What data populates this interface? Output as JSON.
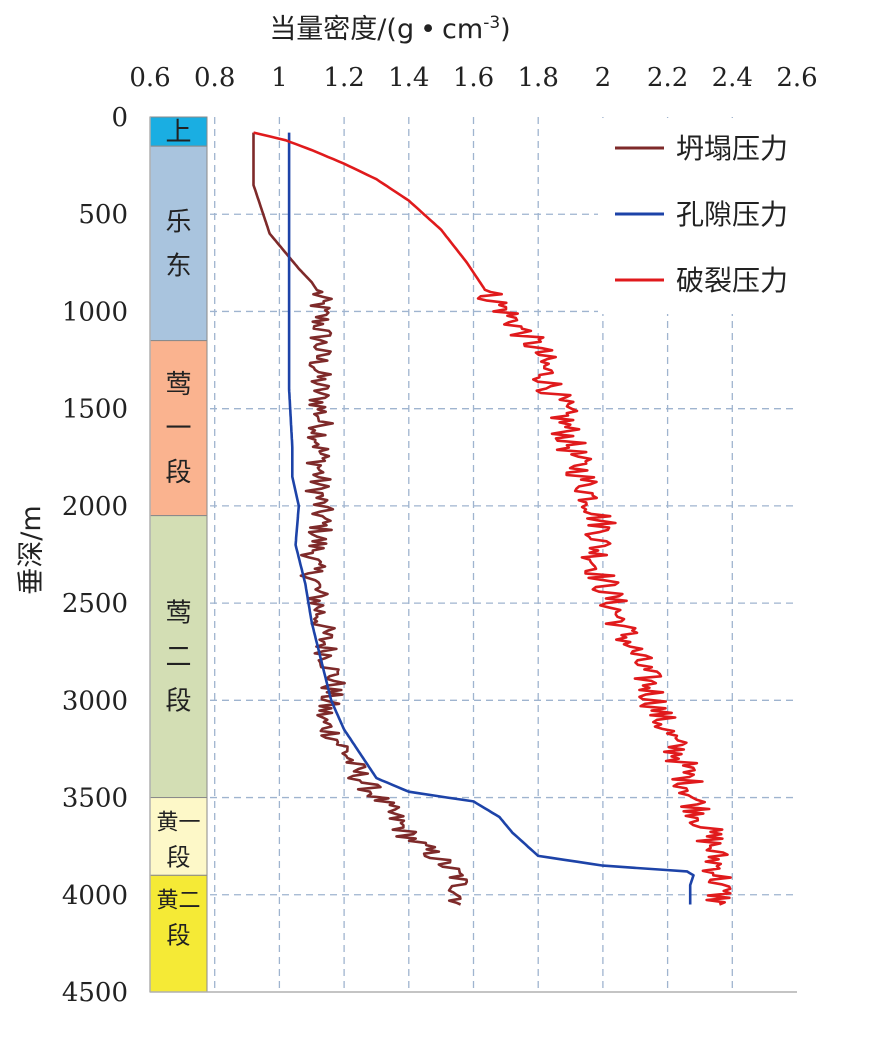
{
  "chart_data": {
    "type": "line",
    "title": "当量密度/(g·cm-3)",
    "title_main": "当量密度/(g",
    "title_dot": "•",
    "title_unit": "cm",
    "title_exp": "-3",
    "title_close": ")",
    "xlabel": "当量密度/(g·cm-3)",
    "ylabel": "垂深/m",
    "x_axis_position": "top",
    "xlim": [
      0.6,
      2.6
    ],
    "ylim": [
      0,
      4500
    ],
    "y_inverted": true,
    "x_ticks": [
      "0.6",
      "0.8",
      "1",
      "1.2",
      "1.4",
      "1.6",
      "1.8",
      "2",
      "2.2",
      "2.4",
      "2.6"
    ],
    "y_ticks": [
      "0",
      "500",
      "1000",
      "1500",
      "2000",
      "2500",
      "3000",
      "3500",
      "4000",
      "4500"
    ],
    "grid": true,
    "legend_position": "top-right",
    "formations": [
      {
        "label": "上",
        "top": 0,
        "bottom": 150,
        "color": "#1aaee2"
      },
      {
        "label": "乐东",
        "top": 150,
        "bottom": 1150,
        "color": "#a9c4de"
      },
      {
        "label": "莺一段",
        "top": 1150,
        "bottom": 2050,
        "color": "#fab38f"
      },
      {
        "label": "莺二段",
        "top": 2050,
        "bottom": 3500,
        "color": "#d3deb4"
      },
      {
        "label": "黄一段",
        "top": 3500,
        "bottom": 3900,
        "color": "#fdf8c8"
      },
      {
        "label": "黄二段",
        "top": 3900,
        "bottom": 4500,
        "color": "#f5ea36"
      }
    ],
    "series": [
      {
        "name": "坍塌压力",
        "color": "#7e2a2a",
        "noise": 0.04,
        "noise_from": 900,
        "points": [
          [
            0.92,
            80
          ],
          [
            0.92,
            350
          ],
          [
            0.94,
            450
          ],
          [
            0.97,
            600
          ],
          [
            1.02,
            700
          ],
          [
            1.06,
            780
          ],
          [
            1.1,
            850
          ],
          [
            1.12,
            900
          ],
          [
            1.13,
            1100
          ],
          [
            1.12,
            1300
          ],
          [
            1.13,
            1600
          ],
          [
            1.12,
            1900
          ],
          [
            1.13,
            2100
          ],
          [
            1.1,
            2300
          ],
          [
            1.12,
            2500
          ],
          [
            1.14,
            2700
          ],
          [
            1.17,
            2900
          ],
          [
            1.13,
            3100
          ],
          [
            1.2,
            3250
          ],
          [
            1.25,
            3400
          ],
          [
            1.33,
            3550
          ],
          [
            1.4,
            3700
          ],
          [
            1.48,
            3800
          ],
          [
            1.55,
            3900
          ],
          [
            1.56,
            4000
          ],
          [
            1.56,
            4050
          ]
        ]
      },
      {
        "name": "孔隙压力",
        "color": "#1d43a8",
        "noise": 0,
        "noise_from": 0,
        "points": [
          [
            1.03,
            80
          ],
          [
            1.03,
            1000
          ],
          [
            1.03,
            1200
          ],
          [
            1.03,
            1400
          ],
          [
            1.04,
            1700
          ],
          [
            1.04,
            1850
          ],
          [
            1.06,
            2000
          ],
          [
            1.05,
            2200
          ],
          [
            1.08,
            2400
          ],
          [
            1.1,
            2600
          ],
          [
            1.13,
            2800
          ],
          [
            1.16,
            3000
          ],
          [
            1.2,
            3150
          ],
          [
            1.24,
            3250
          ],
          [
            1.3,
            3400
          ],
          [
            1.4,
            3470
          ],
          [
            1.6,
            3520
          ],
          [
            1.68,
            3600
          ],
          [
            1.72,
            3680
          ],
          [
            1.8,
            3800
          ],
          [
            2.0,
            3850
          ],
          [
            2.26,
            3880
          ],
          [
            2.28,
            3900
          ],
          [
            2.27,
            3950
          ],
          [
            2.27,
            4050
          ]
        ]
      },
      {
        "name": "破裂压力",
        "color": "#e01a1c",
        "noise": 0.05,
        "noise_from": 900,
        "points": [
          [
            0.92,
            80
          ],
          [
            1.02,
            120
          ],
          [
            1.1,
            170
          ],
          [
            1.2,
            240
          ],
          [
            1.3,
            320
          ],
          [
            1.4,
            430
          ],
          [
            1.5,
            580
          ],
          [
            1.58,
            750
          ],
          [
            1.64,
            900
          ],
          [
            1.7,
            1000
          ],
          [
            1.75,
            1100
          ],
          [
            1.8,
            1200
          ],
          [
            1.83,
            1350
          ],
          [
            1.87,
            1500
          ],
          [
            1.9,
            1700
          ],
          [
            1.95,
            1900
          ],
          [
            2.0,
            2100
          ],
          [
            1.98,
            2300
          ],
          [
            2.03,
            2500
          ],
          [
            2.08,
            2700
          ],
          [
            2.14,
            2900
          ],
          [
            2.18,
            3100
          ],
          [
            2.24,
            3300
          ],
          [
            2.28,
            3500
          ],
          [
            2.33,
            3700
          ],
          [
            2.36,
            3900
          ],
          [
            2.36,
            4050
          ]
        ]
      }
    ]
  }
}
